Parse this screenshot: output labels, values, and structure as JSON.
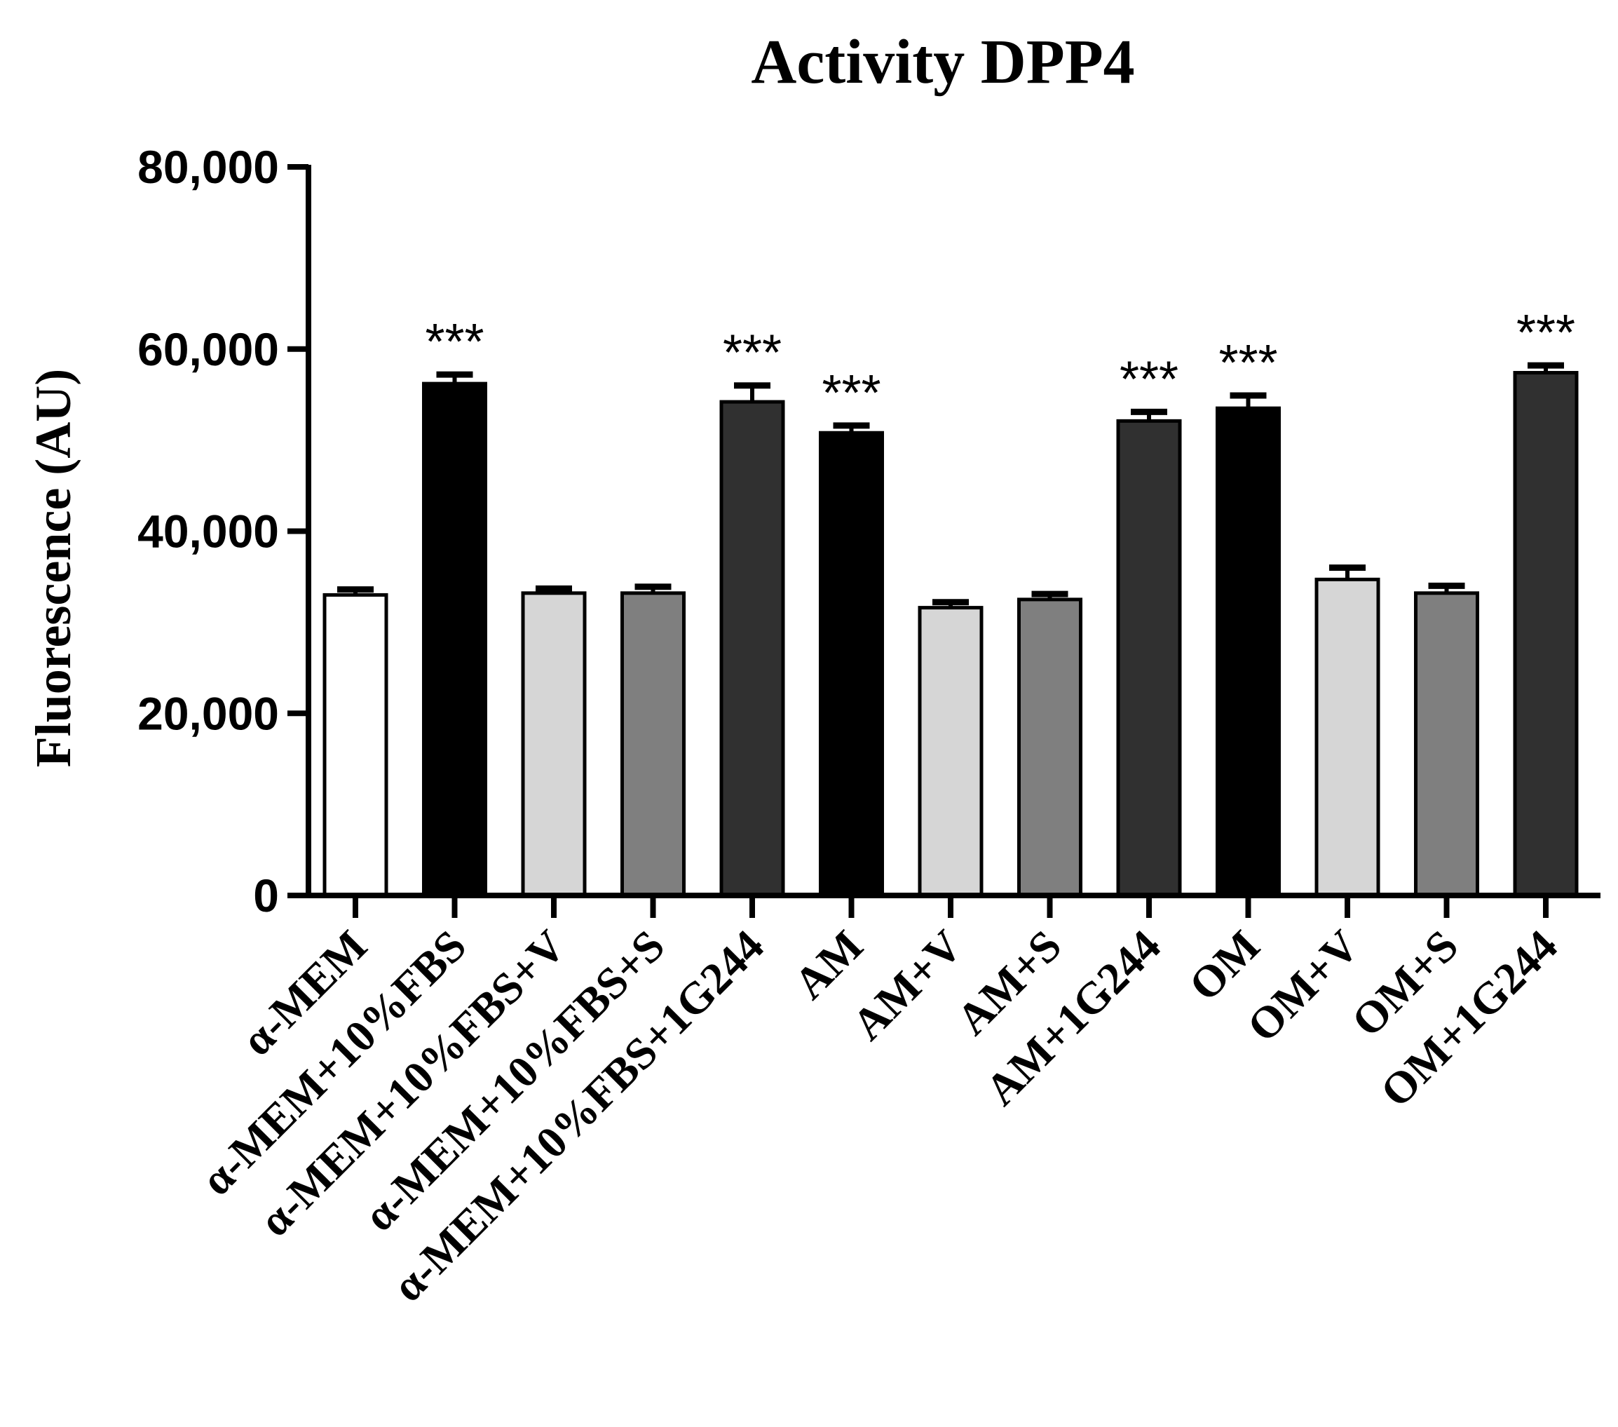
{
  "chart_data": {
    "type": "bar",
    "title": "Activity DPP4",
    "xlabel": "",
    "ylabel": "Fluorescence (AU)",
    "ylim": [
      0,
      80000
    ],
    "yticks": [
      0,
      20000,
      40000,
      60000,
      80000
    ],
    "ytick_labels": [
      "0",
      "20,000",
      "40,000",
      "60,000",
      "80,000"
    ],
    "grid": false,
    "legend": "none",
    "categories": [
      "α-MEM",
      "α-MEM+10%FBS",
      "α-MEM+10%FBS+V",
      "α-MEM+10%FBS+S",
      "α-MEM+10%FBS+1G244",
      "AM",
      "AM+V",
      "AM+S",
      "AM+1G244",
      "OM",
      "OM+V",
      "OM+S",
      "OM+1G244"
    ],
    "values": [
      33000,
      56200,
      33200,
      33200,
      54200,
      50800,
      31600,
      32500,
      52100,
      53500,
      34700,
      33200,
      57400
    ],
    "errors": [
      600,
      1000,
      500,
      700,
      1800,
      800,
      600,
      600,
      1000,
      1400,
      1300,
      800,
      800
    ],
    "significance": [
      "",
      "***",
      "",
      "",
      "***",
      "***",
      "",
      "",
      "***",
      "***",
      "",
      "",
      "***"
    ],
    "colors": [
      "#ffffff",
      "#000000",
      "#d6d6d6",
      "#7f7f7f",
      "#303030",
      "#000000",
      "#d6d6d6",
      "#7f7f7f",
      "#303030",
      "#000000",
      "#d6d6d6",
      "#7f7f7f",
      "#303030"
    ]
  }
}
